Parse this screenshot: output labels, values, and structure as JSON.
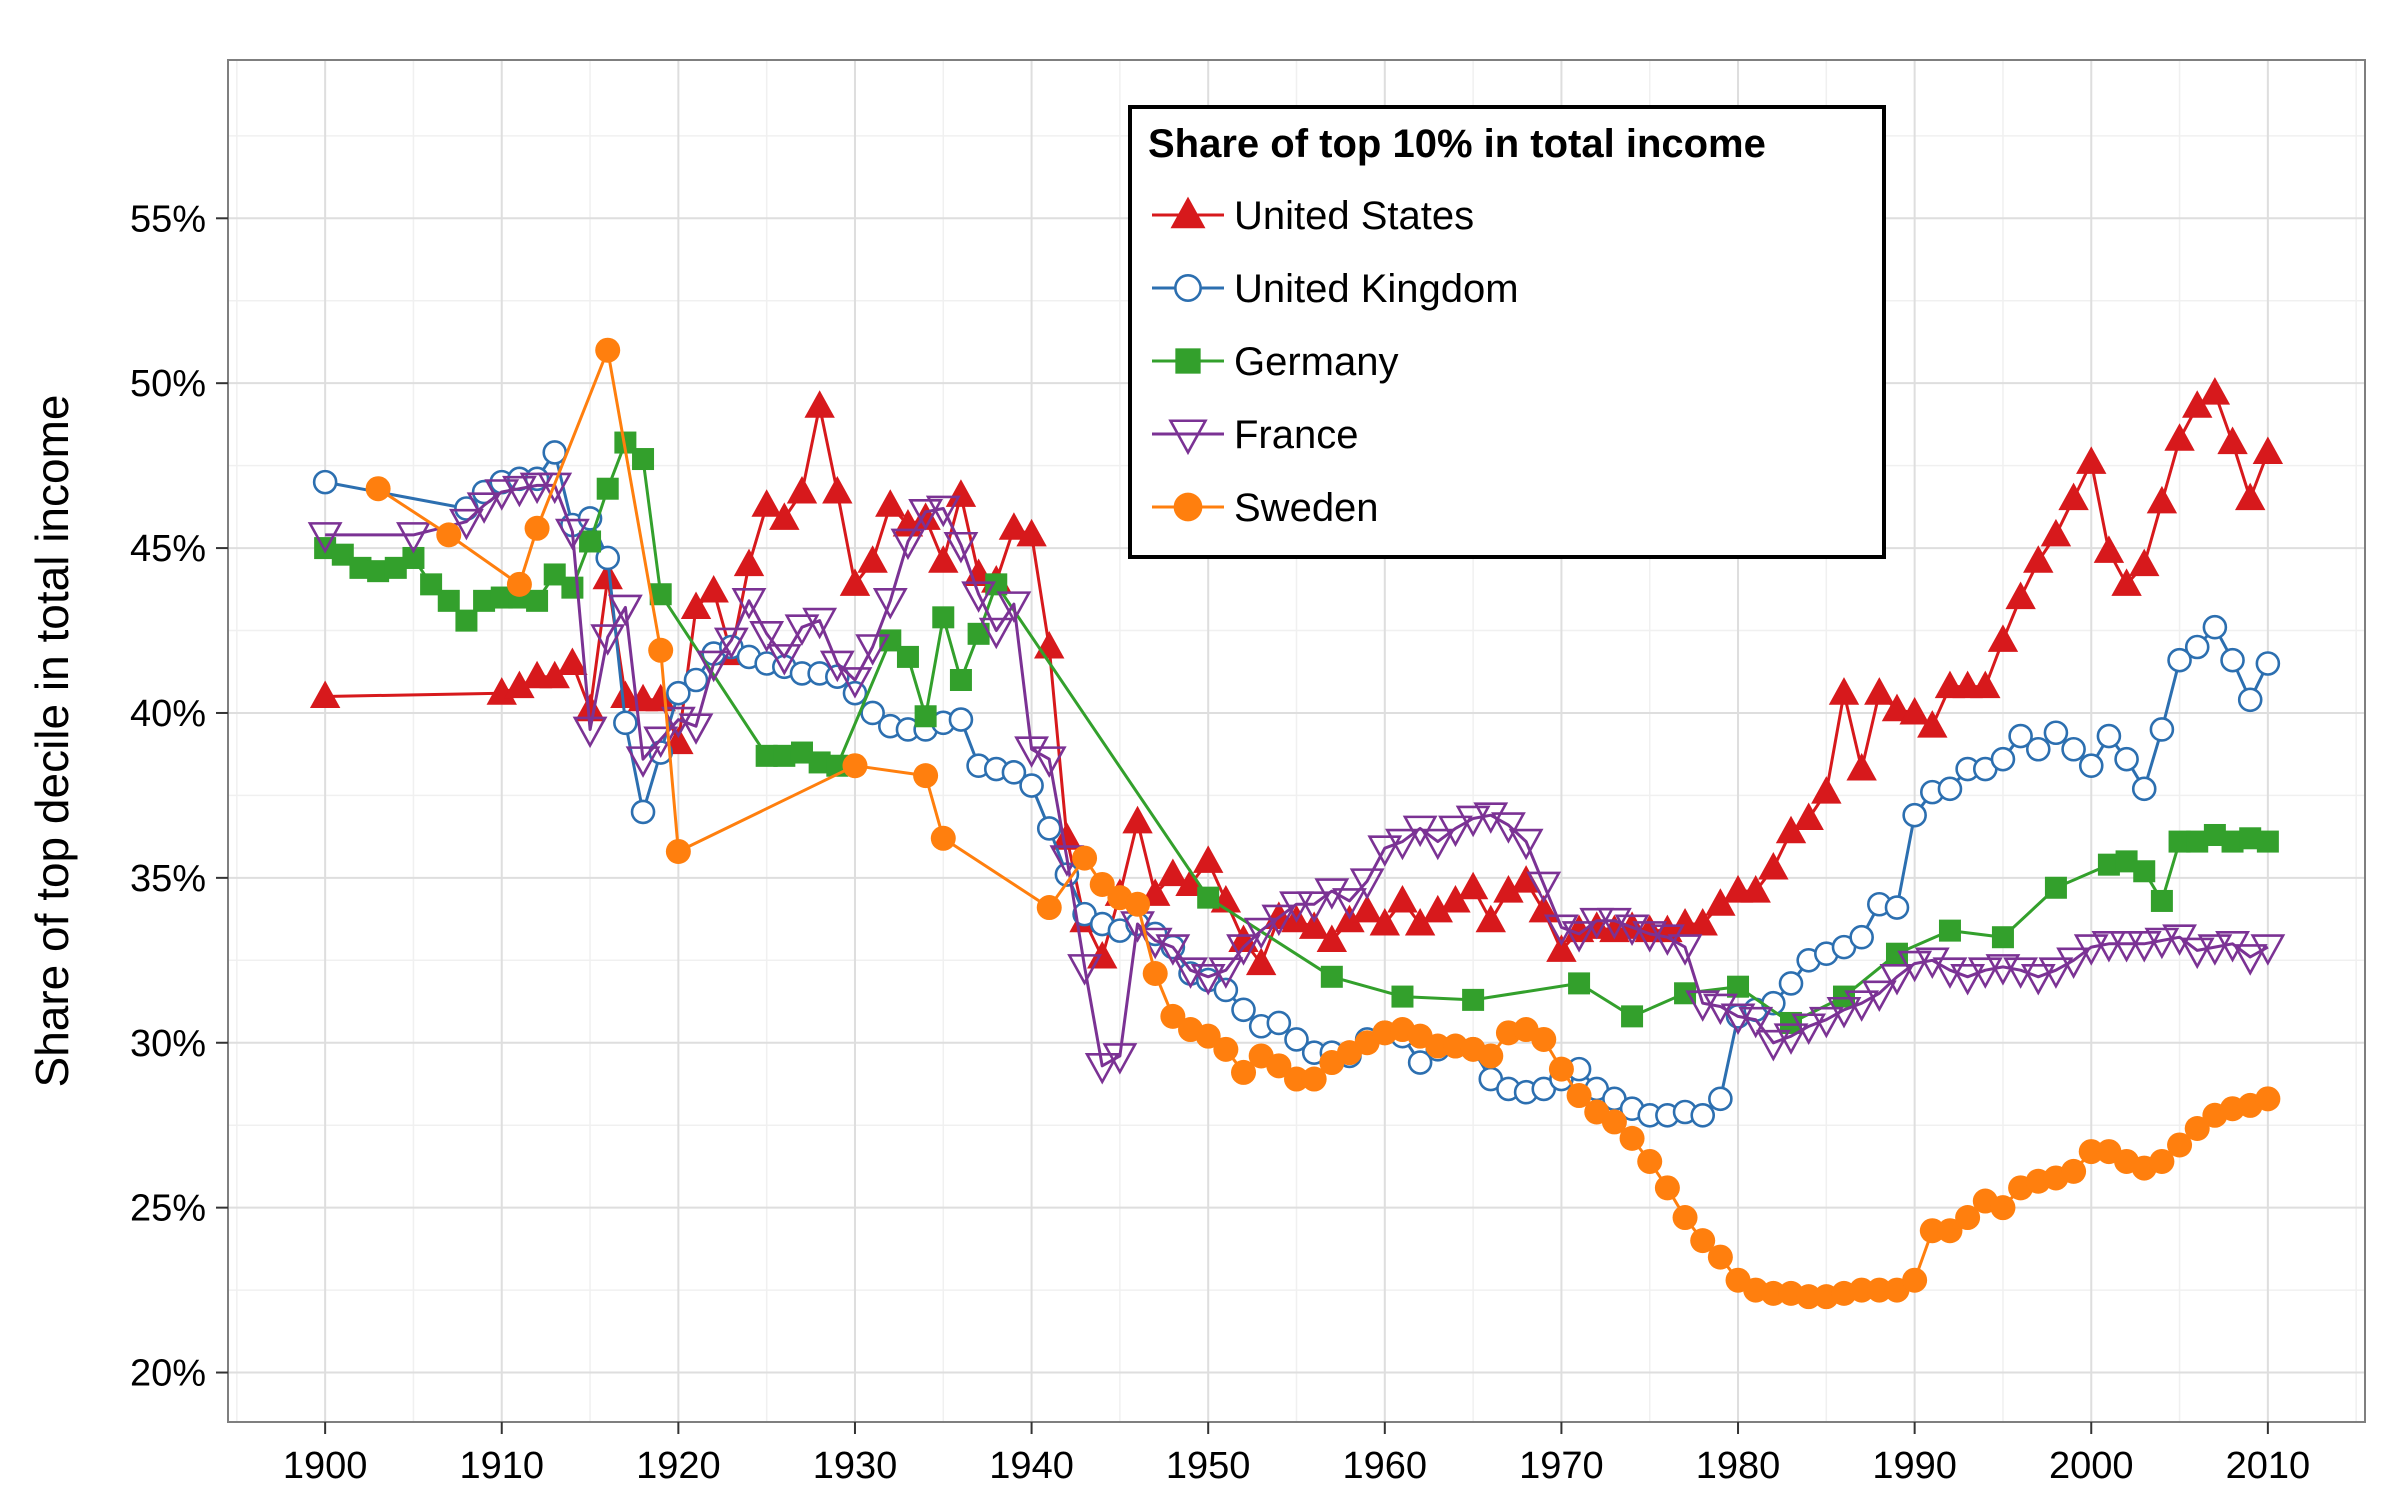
{
  "chart_data": {
    "type": "line",
    "title": "",
    "xlabel": "",
    "ylabel": "Share of top decile in total income",
    "xlim": [
      1894.5,
      2015.5
    ],
    "ylim": [
      18.5,
      59.8
    ],
    "x_ticks": [
      1900,
      1910,
      1920,
      1930,
      1940,
      1950,
      1960,
      1970,
      1980,
      1990,
      2000,
      2010
    ],
    "x_tick_labels": [
      "1900",
      "1910",
      "1920",
      "1930",
      "1940",
      "1950",
      "1960",
      "1970",
      "1980",
      "1990",
      "2000",
      "2010"
    ],
    "y_ticks": [
      20,
      25,
      30,
      35,
      40,
      45,
      50,
      55
    ],
    "y_tick_labels": [
      "20%",
      "25%",
      "30%",
      "35%",
      "40%",
      "45%",
      "50%",
      "55%"
    ],
    "grid": true,
    "legend": {
      "title": "Share of top 10% in total income",
      "position": "top-center"
    },
    "series": [
      {
        "name": "United States",
        "color": "#d7191c",
        "marker": "triangle-up",
        "x": [
          1900,
          1910,
          1911,
          1912,
          1913,
          1914,
          1915,
          1916,
          1917,
          1918,
          1919,
          1920,
          1921,
          1922,
          1923,
          1924,
          1925,
          1926,
          1927,
          1928,
          1929,
          1930,
          1931,
          1932,
          1933,
          1934,
          1935,
          1936,
          1937,
          1938,
          1939,
          1940,
          1941,
          1942,
          1943,
          1944,
          1945,
          1946,
          1947,
          1948,
          1949,
          1950,
          1951,
          1952,
          1953,
          1954,
          1955,
          1956,
          1957,
          1958,
          1959,
          1960,
          1961,
          1962,
          1963,
          1964,
          1965,
          1966,
          1967,
          1968,
          1969,
          1970,
          1971,
          1972,
          1973,
          1974,
          1975,
          1976,
          1977,
          1978,
          1979,
          1980,
          1981,
          1982,
          1983,
          1984,
          1985,
          1986,
          1987,
          1988,
          1989,
          1990,
          1991,
          1992,
          1993,
          1994,
          1995,
          1996,
          1997,
          1998,
          1999,
          2000,
          2001,
          2002,
          2003,
          2004,
          2005,
          2006,
          2007,
          2008,
          2009,
          2010
        ],
        "y": [
          40.5,
          40.6,
          40.8,
          41.1,
          41.1,
          41.5,
          40.1,
          44.1,
          40.5,
          40.4,
          40.4,
          39.1,
          43.2,
          43.7,
          41.8,
          44.5,
          46.3,
          45.9,
          46.7,
          49.3,
          46.7,
          43.9,
          44.6,
          46.3,
          45.7,
          45.9,
          44.6,
          46.6,
          44.2,
          44.0,
          45.6,
          45.4,
          42.0,
          36.2,
          33.7,
          32.6,
          34.5,
          36.7,
          34.5,
          35.1,
          34.8,
          35.5,
          34.3,
          33.1,
          32.4,
          33.8,
          33.7,
          33.5,
          33.1,
          33.7,
          34.0,
          33.6,
          34.3,
          33.6,
          34.0,
          34.3,
          34.7,
          33.7,
          34.6,
          34.9,
          34.0,
          32.8,
          33.4,
          33.5,
          33.4,
          33.5,
          33.4,
          33.4,
          33.6,
          33.6,
          34.2,
          34.6,
          34.6,
          35.3,
          36.4,
          36.8,
          37.6,
          40.6,
          38.3,
          40.6,
          40.1,
          40.0,
          39.6,
          40.8,
          40.8,
          40.8,
          42.2,
          43.5,
          44.6,
          45.4,
          46.5,
          47.6,
          44.9,
          43.9,
          44.5,
          46.4,
          48.3,
          49.3,
          49.7,
          48.2,
          46.5,
          47.9
        ]
      },
      {
        "name": "United Kingdom",
        "color": "#2c6fb0",
        "marker": "circle-open",
        "x": [
          1900,
          1908,
          1909,
          1910,
          1911,
          1912,
          1913,
          1914,
          1915,
          1916,
          1917,
          1918,
          1919,
          1920,
          1921,
          1922,
          1923,
          1924,
          1925,
          1926,
          1927,
          1928,
          1929,
          1930,
          1931,
          1932,
          1933,
          1934,
          1935,
          1936,
          1937,
          1938,
          1939,
          1940,
          1941,
          1942,
          1943,
          1944,
          1945,
          1946,
          1947,
          1948,
          1949,
          1950,
          1951,
          1952,
          1953,
          1954,
          1955,
          1956,
          1957,
          1958,
          1959,
          1960,
          1961,
          1962,
          1963,
          1964,
          1965,
          1966,
          1967,
          1968,
          1969,
          1970,
          1971,
          1972,
          1973,
          1974,
          1975,
          1976,
          1977,
          1978,
          1979,
          1980,
          1981,
          1982,
          1983,
          1984,
          1985,
          1986,
          1987,
          1988,
          1989,
          1990,
          1991,
          1992,
          1993,
          1994,
          1995,
          1996,
          1997,
          1998,
          1999,
          2000,
          2001,
          2002,
          2003,
          2004,
          2005,
          2006,
          2007,
          2008,
          2009,
          2010
        ],
        "y": [
          47.0,
          46.2,
          46.7,
          47.0,
          47.1,
          47.1,
          47.9,
          45.7,
          45.9,
          44.7,
          39.7,
          37.0,
          38.8,
          40.6,
          41.0,
          41.8,
          42.0,
          41.7,
          41.5,
          41.4,
          41.2,
          41.2,
          41.1,
          40.6,
          40.0,
          39.6,
          39.5,
          39.5,
          39.7,
          39.8,
          38.4,
          38.3,
          38.2,
          37.8,
          36.5,
          35.1,
          33.9,
          33.6,
          33.4,
          33.6,
          33.3,
          32.9,
          32.1,
          31.9,
          31.6,
          31.0,
          30.5,
          30.6,
          30.1,
          29.7,
          29.7,
          29.6,
          30.1,
          30.3,
          30.2,
          29.4,
          29.8,
          29.9,
          29.8,
          28.9,
          28.6,
          28.5,
          28.6,
          28.9,
          29.2,
          28.6,
          28.3,
          28.0,
          27.8,
          27.8,
          27.9,
          27.8,
          28.3,
          30.8,
          31.0,
          31.2,
          31.8,
          32.5,
          32.7,
          32.9,
          33.2,
          34.2,
          34.1,
          36.9,
          37.6,
          37.7,
          38.3,
          38.3,
          38.6,
          39.3,
          38.9,
          39.4,
          38.9,
          38.4,
          39.3,
          38.6,
          37.7,
          39.5,
          41.6,
          42.0,
          42.6,
          41.6,
          40.4,
          41.5
        ]
      },
      {
        "name": "Germany",
        "color": "#33a02c",
        "marker": "square",
        "x": [
          1900,
          1901,
          1902,
          1903,
          1904,
          1905,
          1906,
          1907,
          1908,
          1909,
          1910,
          1911,
          1912,
          1913,
          1914,
          1915,
          1916,
          1917,
          1918,
          1919,
          1925,
          1926,
          1927,
          1928,
          1929,
          1932,
          1933,
          1934,
          1935,
          1936,
          1937,
          1938,
          1950,
          1957,
          1961,
          1965,
          1971,
          1974,
          1977,
          1980,
          1983,
          1986,
          1989,
          1992,
          1995,
          1998,
          2001,
          2002,
          2003,
          2004,
          2005,
          2006,
          2007,
          2008,
          2009,
          2010
        ],
        "y": [
          45.0,
          44.8,
          44.4,
          44.3,
          44.4,
          44.7,
          43.9,
          43.4,
          42.8,
          43.4,
          43.5,
          43.5,
          43.4,
          44.2,
          43.8,
          45.2,
          46.8,
          48.2,
          47.7,
          43.6,
          38.7,
          38.7,
          38.8,
          38.5,
          38.4,
          42.2,
          41.7,
          39.9,
          42.9,
          41.0,
          42.4,
          43.9,
          34.4,
          32.0,
          31.4,
          31.3,
          31.8,
          30.8,
          31.5,
          31.7,
          30.6,
          31.4,
          32.7,
          33.4,
          33.2,
          34.7,
          35.4,
          35.5,
          35.2,
          34.3,
          36.1,
          36.1,
          36.3,
          36.1,
          36.2,
          36.1
        ]
      },
      {
        "name": "France",
        "color": "#7b3294",
        "marker": "triangle-down-open",
        "x": [
          1900,
          1905,
          1908,
          1909,
          1910,
          1911,
          1912,
          1913,
          1914,
          1915,
          1916,
          1917,
          1918,
          1919,
          1920,
          1921,
          1922,
          1923,
          1924,
          1925,
          1926,
          1927,
          1928,
          1929,
          1930,
          1931,
          1932,
          1933,
          1934,
          1935,
          1936,
          1937,
          1938,
          1939,
          1940,
          1941,
          1942,
          1943,
          1944,
          1945,
          1946,
          1947,
          1948,
          1949,
          1950,
          1951,
          1952,
          1953,
          1954,
          1955,
          1956,
          1957,
          1958,
          1959,
          1960,
          1961,
          1962,
          1963,
          1964,
          1965,
          1966,
          1967,
          1968,
          1969,
          1970,
          1971,
          1972,
          1973,
          1974,
          1975,
          1976,
          1977,
          1978,
          1979,
          1980,
          1981,
          1982,
          1983,
          1984,
          1985,
          1986,
          1987,
          1988,
          1989,
          1990,
          1991,
          1992,
          1993,
          1994,
          1995,
          1996,
          1997,
          1998,
          1999,
          2000,
          2001,
          2002,
          2003,
          2004,
          2005,
          2006,
          2007,
          2008,
          2009,
          2010
        ],
        "y": [
          45.4,
          45.4,
          45.8,
          46.3,
          46.7,
          46.8,
          46.9,
          46.9,
          45.5,
          39.5,
          42.3,
          43.2,
          38.6,
          39.2,
          39.8,
          39.6,
          41.5,
          42.2,
          43.4,
          42.4,
          41.7,
          42.6,
          42.8,
          41.5,
          41.0,
          42.0,
          43.4,
          45.2,
          46.1,
          46.2,
          45.1,
          43.6,
          42.5,
          43.3,
          38.9,
          38.6,
          35.6,
          32.3,
          29.3,
          29.6,
          33.6,
          33.1,
          32.9,
          32.2,
          32.0,
          32.2,
          32.9,
          33.4,
          33.8,
          34.2,
          34.2,
          34.6,
          34.3,
          34.9,
          35.9,
          36.1,
          36.5,
          36.1,
          36.5,
          36.8,
          36.9,
          36.6,
          36.1,
          34.8,
          33.5,
          33.3,
          33.7,
          33.7,
          33.5,
          33.3,
          33.2,
          32.9,
          31.2,
          31.1,
          30.8,
          30.7,
          30.0,
          30.2,
          30.5,
          30.7,
          31.0,
          31.2,
          31.5,
          32.0,
          32.4,
          32.5,
          32.2,
          32.0,
          32.2,
          32.3,
          32.2,
          32.0,
          32.2,
          32.5,
          32.9,
          33.0,
          33.0,
          33.0,
          33.1,
          33.2,
          32.8,
          32.9,
          33.0,
          32.6,
          32.9
        ]
      },
      {
        "name": "Sweden",
        "color": "#ff7f0e",
        "marker": "circle",
        "x": [
          1903,
          1907,
          1911,
          1912,
          1916,
          1919,
          1920,
          1930,
          1934,
          1935,
          1941,
          1943,
          1944,
          1945,
          1946,
          1947,
          1948,
          1949,
          1950,
          1951,
          1952,
          1953,
          1954,
          1955,
          1956,
          1957,
          1958,
          1959,
          1960,
          1961,
          1962,
          1963,
          1964,
          1965,
          1966,
          1967,
          1968,
          1969,
          1970,
          1971,
          1972,
          1973,
          1974,
          1975,
          1976,
          1977,
          1978,
          1979,
          1980,
          1981,
          1982,
          1983,
          1984,
          1985,
          1986,
          1987,
          1988,
          1989,
          1990,
          1991,
          1992,
          1993,
          1994,
          1995,
          1996,
          1997,
          1998,
          1999,
          2000,
          2001,
          2002,
          2003,
          2004,
          2005,
          2006,
          2007,
          2008,
          2009,
          2010
        ],
        "y": [
          46.8,
          45.4,
          43.9,
          45.6,
          51.0,
          41.9,
          35.8,
          38.4,
          38.1,
          36.2,
          34.1,
          35.6,
          34.8,
          34.4,
          34.2,
          32.1,
          30.8,
          30.4,
          30.2,
          29.8,
          29.1,
          29.6,
          29.3,
          28.9,
          28.9,
          29.4,
          29.7,
          30.0,
          30.3,
          30.4,
          30.2,
          29.9,
          29.9,
          29.8,
          29.6,
          30.3,
          30.4,
          30.1,
          29.2,
          28.4,
          27.9,
          27.6,
          27.1,
          26.4,
          25.6,
          24.7,
          24.0,
          23.5,
          22.8,
          22.5,
          22.4,
          22.4,
          22.3,
          22.3,
          22.4,
          22.5,
          22.5,
          22.5,
          22.8,
          24.3,
          24.3,
          24.7,
          25.2,
          25.0,
          25.6,
          25.8,
          25.9,
          26.1,
          26.7,
          26.7,
          26.4,
          26.2,
          26.4,
          26.9,
          27.4,
          27.8,
          28.0,
          28.1,
          28.3
        ]
      }
    ]
  }
}
